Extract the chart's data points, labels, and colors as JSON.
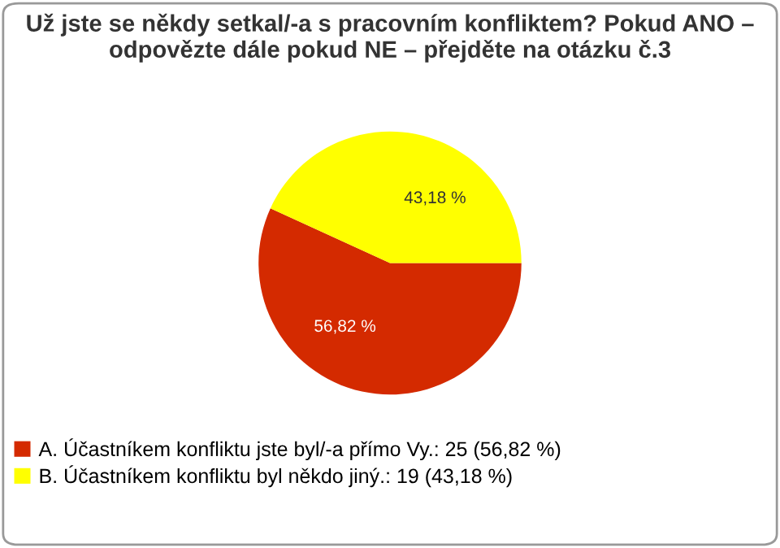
{
  "chart_data": {
    "type": "pie",
    "title": "Už jste se někdy setkal/-a s pracovním konfliktem? Pokud ANO –\nodpovězte dále pokud NE – přejděte na otázku č.3",
    "categories": [
      "A. Účastníkem konfliktu jste byl/-a přímo Vy.: 25 (56,82 %)",
      "B. Účastníkem konfliktu byl někdo jiný.: 19 (43,18 %)"
    ],
    "values": [
      56.82,
      43.18
    ],
    "value_labels": [
      "56,82 %",
      "43,18 %"
    ],
    "colors": [
      "#d42a00",
      "#ffff00"
    ],
    "legend": "bottom left"
  }
}
